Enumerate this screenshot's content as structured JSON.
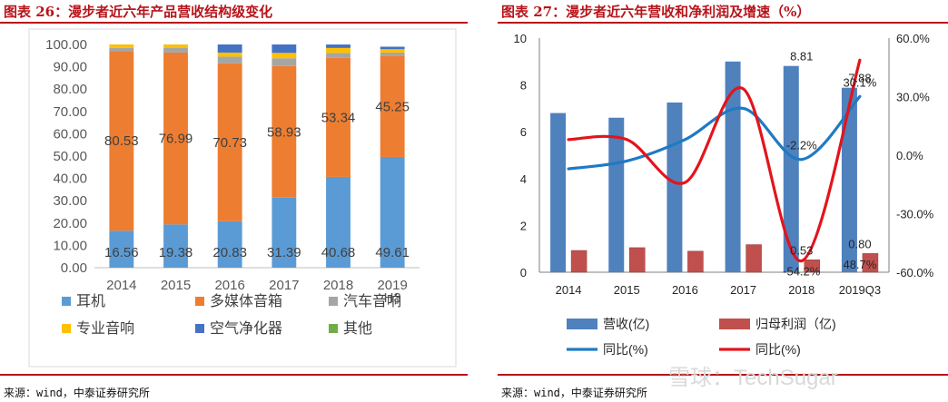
{
  "left": {
    "title": "图表 26：漫步者近六年产品营收结构级变化",
    "source": "来源：wind，中泰证券研究所"
  },
  "right": {
    "title": "图表 27：漫步者近六年营收和净利润及增速（%）",
    "source": "来源：wind，中泰证券研究所"
  },
  "watermark": "雪球：TechSugar",
  "colors": {
    "headphones": "#5b9bd5",
    "speakers": "#ed7d31",
    "car_audio": "#a5a5a5",
    "pro_audio": "#ffc000",
    "air_purifier": "#4472c4",
    "other": "#70ad47",
    "revenue": "#4f81bd",
    "net_profit": "#c0504d",
    "revenue_yoy": "#1f7ac4",
    "profit_yoy": "#e3141c"
  },
  "chart_data": [
    {
      "type": "bar",
      "stacked": true,
      "categories": [
        "2014",
        "2015",
        "2016",
        "2017",
        "2018",
        "2019H3"
      ],
      "tick_labels": [
        "2014",
        "2015",
        "2016",
        "2017",
        "2018",
        "2019",
        "H3"
      ],
      "ylim": [
        0,
        100
      ],
      "yticks": [
        "0.00",
        "10.00",
        "20.00",
        "30.00",
        "40.00",
        "50.00",
        "60.00",
        "70.00",
        "80.00",
        "90.00",
        "100.00"
      ],
      "series": [
        {
          "key": "headphones",
          "name": "耳机",
          "values": [
            16.56,
            19.38,
            20.83,
            31.39,
            40.68,
            49.61
          ],
          "labels": [
            "16.56",
            "19.38",
            "20.83",
            "31.39",
            "40.68",
            "49.61"
          ]
        },
        {
          "key": "speakers",
          "name": "多媒体音箱",
          "values": [
            80.53,
            76.99,
            70.73,
            58.93,
            53.34,
            45.25
          ],
          "labels": [
            "80.53",
            "76.99",
            "70.73",
            "58.93",
            "53.34",
            "45.25"
          ]
        },
        {
          "key": "car_audio",
          "name": "汽车音响",
          "values": [
            1.4,
            2.0,
            3.0,
            3.5,
            2.2,
            1.5
          ]
        },
        {
          "key": "pro_audio",
          "name": "专业音响",
          "values": [
            1.5,
            1.6,
            1.8,
            2.4,
            2.2,
            1.5
          ]
        },
        {
          "key": "air_purifier",
          "name": "空气净化器",
          "values": [
            0.01,
            0.03,
            3.64,
            3.78,
            1.56,
            1.14
          ]
        },
        {
          "key": "other",
          "name": "其他",
          "values": [
            0.0,
            0.0,
            0.0,
            0.0,
            0.0,
            0.0
          ]
        }
      ],
      "legend": [
        {
          "key": "headphones",
          "name": "耳机"
        },
        {
          "key": "speakers",
          "name": "多媒体音箱"
        },
        {
          "key": "car_audio",
          "name": "汽车音响"
        },
        {
          "key": "pro_audio",
          "name": "专业音响"
        },
        {
          "key": "air_purifier",
          "name": "空气净化器"
        },
        {
          "key": "other",
          "name": "其他"
        }
      ],
      "legend_position": "bottom"
    },
    {
      "type": "bar+line",
      "categories": [
        "2014",
        "2015",
        "2016",
        "2017",
        "2018",
        "2019Q3"
      ],
      "y_left": {
        "lim": [
          0,
          10
        ],
        "ticks": [
          "0",
          "2",
          "4",
          "6",
          "8",
          "10"
        ]
      },
      "y_right": {
        "lim": [
          -60,
          60
        ],
        "ticks": [
          "-60.0%",
          "-30.0%",
          "0.0%",
          "30.0%",
          "60.0%"
        ]
      },
      "bars": [
        {
          "key": "revenue",
          "name": "营收(亿)",
          "axis": "left",
          "values": [
            6.8,
            6.6,
            7.25,
            9.0,
            8.81,
            7.88
          ]
        },
        {
          "key": "net_profit",
          "name": "归母利润（亿)",
          "axis": "left",
          "values": [
            0.93,
            1.05,
            0.9,
            1.18,
            0.53,
            0.8
          ]
        }
      ],
      "lines": [
        {
          "key": "revenue_yoy",
          "name": "同比(%)",
          "axis": "right",
          "values": [
            -7.0,
            -3.0,
            8.0,
            24.0,
            -2.2,
            30.1
          ]
        },
        {
          "key": "profit_yoy",
          "name": "同比(%)",
          "axis": "right",
          "values": [
            8.0,
            8.0,
            -14.0,
            34.0,
            -54.2,
            48.7
          ]
        }
      ],
      "annotations": [
        {
          "text": "8.81",
          "category": "2018",
          "axis": "left",
          "value": 8.81,
          "anchor": "top"
        },
        {
          "text": "7.88",
          "category": "2019Q3",
          "axis": "left",
          "value": 7.88,
          "anchor": "top"
        },
        {
          "text": "-2.2%",
          "category": "2018",
          "axis": "right",
          "value": -2.2,
          "anchor": "above"
        },
        {
          "text": "30.1%",
          "category": "2019Q3",
          "axis": "right",
          "value": 30.1,
          "anchor": "above"
        },
        {
          "text": "0.53",
          "category": "2018",
          "axis": "left",
          "value": 0.53,
          "anchor": "top"
        },
        {
          "text": "0.80",
          "category": "2019Q3",
          "axis": "left",
          "value": 0.8,
          "anchor": "top"
        },
        {
          "text": "-54.2%",
          "category": "2018",
          "axis": "right",
          "value": -54.2,
          "anchor": "below"
        },
        {
          "text": "48.7%",
          "category": "2019Q3",
          "axis": "right",
          "value": 48.7,
          "anchor": "bottom"
        }
      ],
      "legend": [
        {
          "key": "revenue",
          "name": "营收(亿)",
          "shape": "bar"
        },
        {
          "key": "net_profit",
          "name": "归母利润（亿)",
          "shape": "bar"
        },
        {
          "key": "revenue_yoy",
          "name": "同比(%)",
          "shape": "line"
        },
        {
          "key": "profit_yoy",
          "name": "同比(%)",
          "shape": "line"
        }
      ],
      "legend_position": "bottom"
    }
  ]
}
